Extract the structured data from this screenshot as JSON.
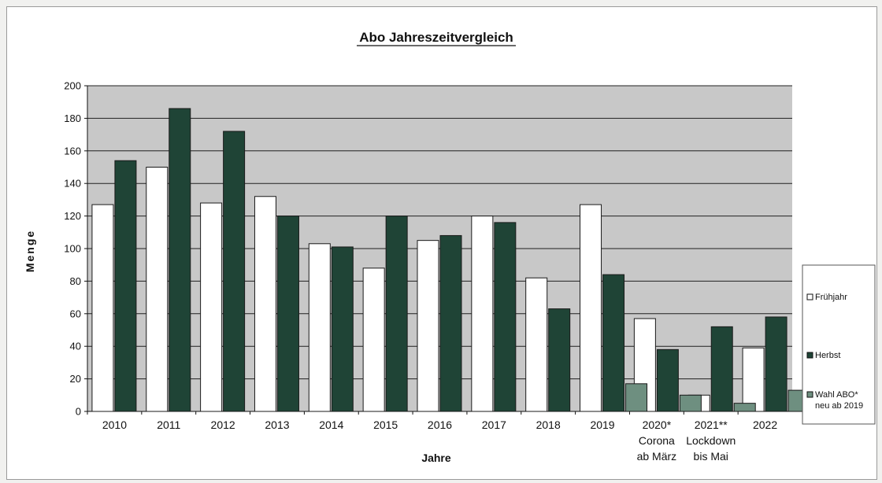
{
  "chart_data": {
    "type": "bar",
    "title": "Abo Jahreszeitvergleich",
    "xlabel": "Jahre",
    "ylabel": "Menge",
    "ylim": [
      0,
      200
    ],
    "yticks": [
      0,
      20,
      40,
      60,
      80,
      100,
      120,
      140,
      160,
      180,
      200
    ],
    "grid": true,
    "legend_position": "right",
    "categories": [
      [
        "2010"
      ],
      [
        "2011"
      ],
      [
        "2012"
      ],
      [
        "2013"
      ],
      [
        "2014"
      ],
      [
        "2015"
      ],
      [
        "2016"
      ],
      [
        "2017"
      ],
      [
        "2018"
      ],
      [
        "2019"
      ],
      [
        "2020*",
        "Corona",
        "ab März"
      ],
      [
        "2021**",
        "Lockdown",
        "bis Mai"
      ],
      [
        "2022"
      ]
    ],
    "series": [
      {
        "name": "Frühjahr",
        "color": "#ffffff",
        "values": [
          127,
          150,
          128,
          132,
          103,
          88,
          105,
          120,
          82,
          127,
          57,
          10,
          39
        ]
      },
      {
        "name": "Herbst",
        "color": "#1f4436",
        "values": [
          154,
          186,
          172,
          120,
          101,
          120,
          108,
          116,
          63,
          84,
          38,
          52,
          58
        ]
      },
      {
        "name": "Wahl ABO* neu ab 2019",
        "legend_lines": [
          "Wahl ABO*",
          "neu ab 2019"
        ],
        "color": "#6e8f80",
        "values": [
          null,
          null,
          null,
          null,
          null,
          null,
          null,
          null,
          null,
          17,
          10,
          5,
          13
        ]
      }
    ],
    "colors": {
      "plot_background": "#c8c8c8",
      "gridline": "#202020",
      "bar_outline": "#1a1a1a"
    }
  }
}
